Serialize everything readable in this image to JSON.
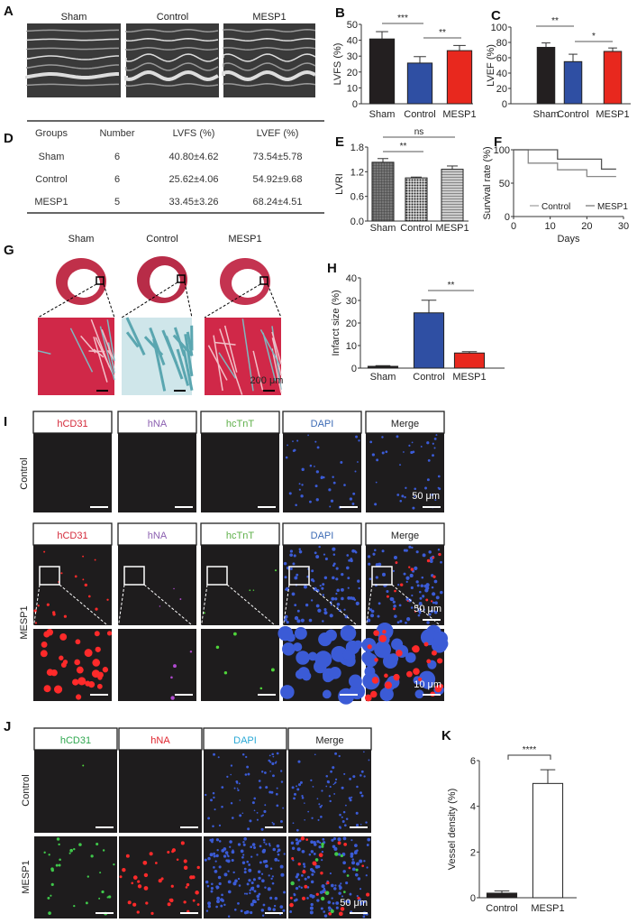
{
  "panels": {
    "A": "A",
    "B": "B",
    "C": "C",
    "D": "D",
    "E": "E",
    "F": "F",
    "G": "G",
    "H": "H",
    "I": "I",
    "J": "J",
    "K": "K"
  },
  "groups": [
    "Sham",
    "Control",
    "MESP1"
  ],
  "colors": {
    "sham": "#231f20",
    "control": "#2f4fa3",
    "mesp1": "#e8281e"
  },
  "table": {
    "headers": [
      "Groups",
      "Number",
      "LVFS (%)",
      "LVEF (%)"
    ],
    "rows": [
      [
        "Sham",
        "6",
        "40.80±4.62",
        "73.54±5.78"
      ],
      [
        "Control",
        "6",
        "25.62±4.06",
        "54.92±9.68"
      ],
      [
        "MESP1",
        "5",
        "33.45±3.26",
        "68.24±4.51"
      ]
    ]
  },
  "panelI": {
    "channels": [
      "hCD31",
      "hNA",
      "hcTnT",
      "DAPI",
      "Merge"
    ],
    "channel_colors": [
      "#d42a3a",
      "#8b5fb0",
      "#5fb04a",
      "#3d6bb5",
      "#222"
    ],
    "rows": [
      "Control",
      "MESP1"
    ],
    "scale1": "50 μm",
    "scale2": "10 μm"
  },
  "panelJ": {
    "channels": [
      "hCD31",
      "hNA",
      "DAPI",
      "Merge"
    ],
    "channel_colors": [
      "#2fa84f",
      "#e0262f",
      "#2aa9d6",
      "#222"
    ],
    "rows": [
      "Control",
      "MESP1"
    ],
    "scale": "50 μm"
  },
  "panelG": {
    "scale": "200 μm"
  },
  "chart_data": [
    {
      "id": "B",
      "type": "bar",
      "categories": [
        "Sham",
        "Control",
        "MESP1"
      ],
      "values": [
        40.8,
        25.62,
        33.45
      ],
      "errors": [
        4.62,
        4.06,
        3.26
      ],
      "ylabel": "LVFS (%)",
      "ylim": [
        0,
        50
      ],
      "yticks": [
        0,
        10,
        20,
        30,
        40,
        50
      ],
      "colors": [
        "#231f20",
        "#2f4fa3",
        "#e8281e"
      ],
      "significance": [
        {
          "pair": [
            "Sham",
            "Control"
          ],
          "label": "***"
        },
        {
          "pair": [
            "Control",
            "MESP1"
          ],
          "label": "**"
        }
      ]
    },
    {
      "id": "C",
      "type": "bar",
      "categories": [
        "Sham",
        "Control",
        "MESP1"
      ],
      "values": [
        73.54,
        54.92,
        68.24
      ],
      "errors": [
        5.78,
        9.68,
        4.51
      ],
      "ylabel": "LVEF (%)",
      "ylim": [
        0,
        100
      ],
      "yticks": [
        0,
        20,
        40,
        60,
        80,
        100
      ],
      "colors": [
        "#231f20",
        "#2f4fa3",
        "#e8281e"
      ],
      "significance": [
        {
          "pair": [
            "Sham",
            "Control"
          ],
          "label": "**"
        },
        {
          "pair": [
            "Control",
            "MESP1"
          ],
          "label": "*"
        }
      ]
    },
    {
      "id": "E",
      "type": "bar",
      "categories": [
        "Sham",
        "Control",
        "MESP1"
      ],
      "values": [
        1.43,
        1.05,
        1.26
      ],
      "errors": [
        0.09,
        0.02,
        0.08
      ],
      "ylabel": "LVRI",
      "ylim": [
        0,
        1.8
      ],
      "yticks": [
        "0.0",
        "0.6",
        "1.2",
        "1.8"
      ],
      "colors": [
        "#555",
        "#333",
        "#aaa"
      ],
      "significance": [
        {
          "pair": [
            "Sham",
            "MESP1"
          ],
          "label": "ns"
        },
        {
          "pair": [
            "Sham",
            "Control"
          ],
          "label": "**"
        }
      ]
    },
    {
      "id": "F",
      "type": "line",
      "xlabel": "Days",
      "ylabel": "Survival rate (%)",
      "xlim": [
        0,
        30
      ],
      "ylim": [
        0,
        100
      ],
      "xticks": [
        0,
        10,
        20,
        30
      ],
      "yticks": [
        0,
        50,
        100
      ],
      "legend": "bottom",
      "series": [
        {
          "name": "Control",
          "x": [
            0,
            4,
            4,
            12,
            12,
            20,
            20,
            28
          ],
          "y": [
            100,
            100,
            80,
            80,
            70,
            70,
            60,
            60
          ],
          "color": "#888"
        },
        {
          "name": "MESP1",
          "x": [
            0,
            12,
            12,
            24,
            24,
            28
          ],
          "y": [
            100,
            100,
            86,
            86,
            71,
            71
          ],
          "color": "#555"
        }
      ]
    },
    {
      "id": "H",
      "type": "bar",
      "categories": [
        "Sham",
        "Control",
        "MESP1"
      ],
      "values": [
        0.8,
        24.5,
        6.7
      ],
      "errors": [
        0.3,
        5.6,
        0.6
      ],
      "ylabel": "Infarct size (%)",
      "ylim": [
        0,
        40
      ],
      "yticks": [
        0,
        10,
        20,
        30,
        40
      ],
      "colors": [
        "#231f20",
        "#2f4fa3",
        "#e8281e"
      ],
      "significance": [
        {
          "pair": [
            "Control",
            "MESP1"
          ],
          "label": "**"
        }
      ]
    },
    {
      "id": "K",
      "type": "bar",
      "categories": [
        "Control",
        "MESP1"
      ],
      "values": [
        0.2,
        5.0
      ],
      "errors": [
        0.1,
        0.6
      ],
      "ylabel": "Vessel density (%)",
      "ylim": [
        0,
        6
      ],
      "yticks": [
        0,
        2,
        4,
        6
      ],
      "colors": [
        "#231f20",
        "#ffffff"
      ],
      "significance": [
        {
          "pair": [
            "Control",
            "MESP1"
          ],
          "label": "****"
        }
      ]
    }
  ]
}
